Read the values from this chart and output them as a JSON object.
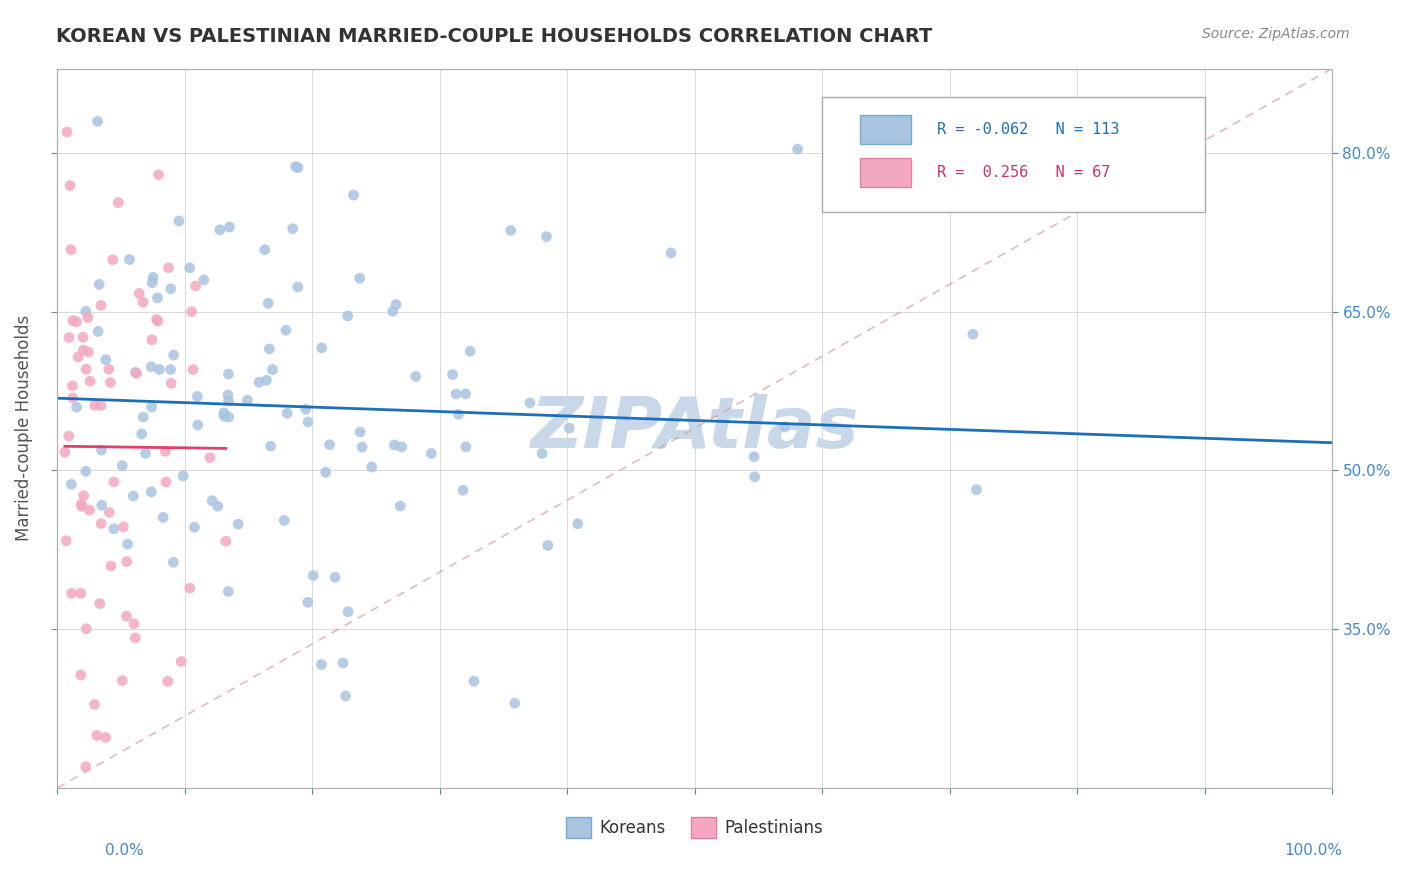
{
  "title": "KOREAN VS PALESTINIAN MARRIED-COUPLE HOUSEHOLDS CORRELATION CHART",
  "source": "Source: ZipAtlas.com",
  "ylabel": "Married-couple Households",
  "xlim": [
    0.0,
    1.0
  ],
  "ylim": [
    0.2,
    0.88
  ],
  "korean_R": -0.062,
  "korean_N": 113,
  "palestinian_R": 0.256,
  "palestinian_N": 67,
  "korean_color": "#a8c4e0",
  "korean_line_color": "#1e6fba",
  "palestinian_color": "#f4a8c0",
  "palestinian_line_color": "#e0406a",
  "watermark": "ZIPAtlas",
  "watermark_color": "#c8d8e8",
  "legend_korean_color": "#a8c4e0",
  "legend_palestinian_color": "#f4a8bf",
  "seed_korean": 42,
  "seed_palestinian": 99
}
